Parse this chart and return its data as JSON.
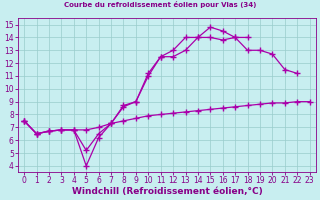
{
  "bg_color": "#c8eef0",
  "line_color": "#aa00aa",
  "grid_color": "#99cccc",
  "xlabel": "Windchill (Refroidissement éolien,°C)",
  "xlim": [
    -0.5,
    23.5
  ],
  "ylim": [
    3.5,
    15.5
  ],
  "xticks": [
    0,
    1,
    2,
    3,
    4,
    5,
    6,
    7,
    8,
    9,
    10,
    11,
    12,
    13,
    14,
    15,
    16,
    17,
    18,
    19,
    20,
    21,
    22,
    23
  ],
  "yticks": [
    4,
    5,
    6,
    7,
    8,
    9,
    10,
    11,
    12,
    13,
    14,
    15
  ],
  "line1_x": [
    0,
    1,
    2,
    3,
    4,
    5,
    6,
    7,
    8,
    9,
    10,
    11,
    12,
    13,
    14,
    15,
    16,
    17,
    18,
    19,
    20,
    21,
    22,
    23
  ],
  "line1_y": [
    7.5,
    6.5,
    6.7,
    6.8,
    6.8,
    6.8,
    7.0,
    7.3,
    7.5,
    7.7,
    7.9,
    8.0,
    8.1,
    8.2,
    8.3,
    8.4,
    8.5,
    8.6,
    8.7,
    8.8,
    8.9,
    8.9,
    9.0,
    9.0
  ],
  "line2_x": [
    0,
    1,
    2,
    3,
    4,
    5,
    6,
    7,
    8,
    9,
    10,
    11,
    12,
    13,
    14,
    15,
    16,
    17,
    18,
    19,
    20,
    21,
    22
  ],
  "line2_y": [
    7.5,
    6.5,
    6.7,
    6.8,
    6.8,
    4.0,
    6.2,
    7.3,
    8.6,
    9.0,
    11.2,
    12.5,
    12.5,
    13.0,
    14.0,
    14.0,
    13.8,
    14.0,
    13.0,
    13.0,
    12.7,
    11.5,
    11.2
  ],
  "line3_x": [
    0,
    1,
    2,
    3,
    4,
    5,
    6,
    7,
    8,
    9,
    10,
    11,
    12,
    13,
    14,
    15,
    16,
    17,
    18
  ],
  "line3_y": [
    7.5,
    6.5,
    6.7,
    6.8,
    6.8,
    5.2,
    6.5,
    7.3,
    8.7,
    9.0,
    11.0,
    12.5,
    13.0,
    14.0,
    14.0,
    14.8,
    14.5,
    14.0,
    14.0
  ],
  "title": "Courbe du refroidissement éolien pour Vias (34)",
  "title_color": "#880088",
  "axis_color": "#880088",
  "tick_fontsize": 5.5,
  "xlabel_fontsize": 6.5
}
